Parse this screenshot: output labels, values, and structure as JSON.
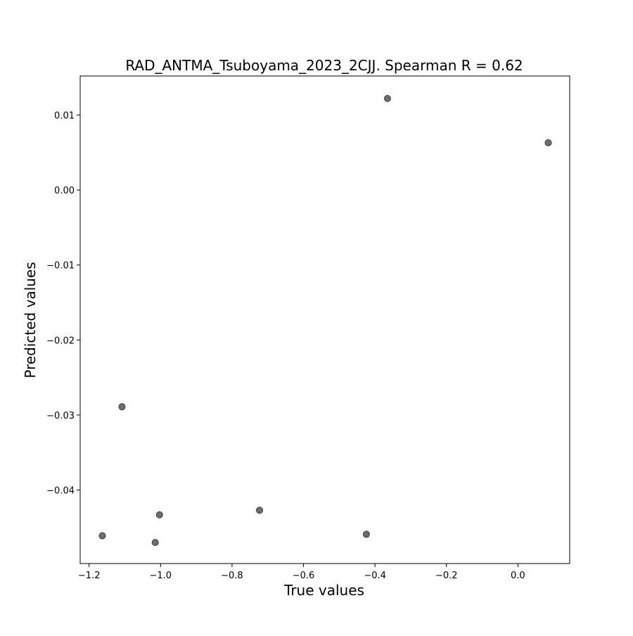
{
  "chart_data": {
    "type": "scatter",
    "title": "RAD_ANTMA_Tsuboyama_2023_2CJJ. Spearman R = 0.62",
    "xlabel": "True values",
    "ylabel": "Predicted values",
    "xlim": [
      -1.225,
      0.145
    ],
    "ylim": [
      -0.0498,
      0.0152
    ],
    "xticks": [
      {
        "value": -1.2,
        "label": "−1.2"
      },
      {
        "value": -1.0,
        "label": "−1.0"
      },
      {
        "value": -0.8,
        "label": "−0.8"
      },
      {
        "value": -0.6,
        "label": "−0.6"
      },
      {
        "value": -0.4,
        "label": "−0.4"
      },
      {
        "value": -0.2,
        "label": "−0.2"
      },
      {
        "value": 0.0,
        "label": "0.0"
      }
    ],
    "yticks": [
      {
        "value": 0.01,
        "label": "0.01"
      },
      {
        "value": 0.0,
        "label": "0.00"
      },
      {
        "value": -0.01,
        "label": "−0.01"
      },
      {
        "value": -0.02,
        "label": "−0.02"
      },
      {
        "value": -0.03,
        "label": "−0.03"
      },
      {
        "value": -0.04,
        "label": "−0.04"
      }
    ],
    "grid": false,
    "points": [
      {
        "x": -0.365,
        "y": 0.0122
      },
      {
        "x": 0.085,
        "y": 0.0063
      },
      {
        "x": -1.108,
        "y": -0.0289
      },
      {
        "x": -1.003,
        "y": -0.0433
      },
      {
        "x": -0.723,
        "y": -0.0427
      },
      {
        "x": -0.424,
        "y": -0.0459
      },
      {
        "x": -1.163,
        "y": -0.0461
      },
      {
        "x": -1.015,
        "y": -0.047
      }
    ],
    "colors": {
      "marker_fill": "#6e6e6e",
      "marker_edge": "#3c3c3c",
      "axes": "#000000"
    }
  }
}
